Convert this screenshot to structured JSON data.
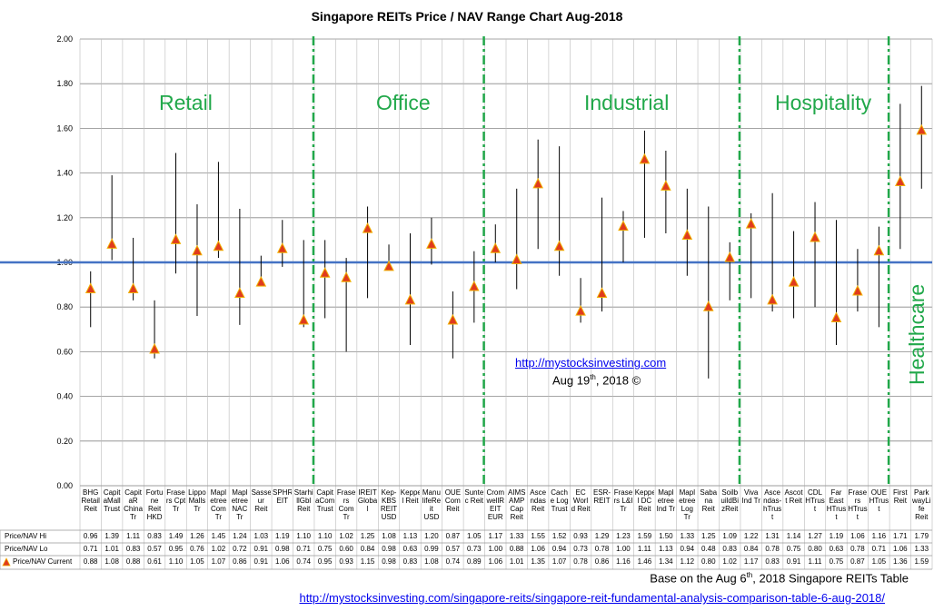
{
  "chart_data": {
    "type": "range",
    "title": "Singapore REITs Price / NAV Range Chart Aug-2018",
    "ylim": [
      0,
      2
    ],
    "yticks": [
      "0.00",
      "0.20",
      "0.40",
      "0.60",
      "0.80",
      "1.00",
      "1.20",
      "1.40",
      "1.60",
      "1.80",
      "2.00"
    ],
    "grid": true,
    "reference_line": 1.0,
    "sectors": [
      "Retail",
      "Office",
      "Industrial",
      "Hospitality",
      "Healthcare"
    ],
    "categories": [
      "BHG Retail Reit",
      "Capit aMall Trust",
      "Capit aR China Tr",
      "Fortu ne Reit HKD",
      "Frase rs Cpt Tr",
      "Lippo Malls Tr",
      "Mapl etree Com Tr",
      "Mapl etree NAC Tr",
      "Sasse ur Reit",
      "SPHR EIT",
      "Starhi llGbl Reit",
      "Capit aCom Trust",
      "Frase rs Com Tr",
      "IREIT Globa l",
      "Kep- KBS REIT USD",
      "Keppe l Reit",
      "Manu lifeRe it USD",
      "OUE Com Reit",
      "Sunte c Reit",
      "Crom wellR EIT EUR",
      "AIMS AMP Cap Reit",
      "Asce ndas Reit",
      "Cach e Log Trust",
      "EC Worl d Reit",
      "ESR- REIT",
      "Frase rs L&I Tr",
      "Keppe l DC Reit",
      "Mapl etree Ind Tr",
      "Mapl etree Log Tr",
      "Saba na Reit",
      "Soilb uildBi zReit",
      "Viva Ind Tr",
      "Asce ndas- hTrus t",
      "Ascot t Reit",
      "CDL HTrus t",
      "Far East HTrus t",
      "Frase rs HTrus t",
      "OUE HTrus t",
      "First Reit",
      "Park wayLi fe Reit"
    ],
    "series": [
      {
        "name": "Price/NAV Hi",
        "values": [
          0.96,
          1.39,
          1.11,
          0.83,
          1.49,
          1.26,
          1.45,
          1.24,
          1.03,
          1.19,
          1.1,
          1.1,
          1.02,
          1.25,
          1.08,
          1.13,
          1.2,
          0.87,
          1.05,
          1.17,
          1.33,
          1.55,
          1.52,
          0.93,
          1.29,
          1.23,
          1.59,
          1.5,
          1.33,
          1.25,
          1.09,
          1.22,
          1.31,
          1.14,
          1.27,
          1.19,
          1.06,
          1.16,
          1.71,
          1.79
        ]
      },
      {
        "name": "Price/NAV Lo",
        "values": [
          0.71,
          1.01,
          0.83,
          0.57,
          0.95,
          0.76,
          1.02,
          0.72,
          0.91,
          0.98,
          0.71,
          0.75,
          0.6,
          0.84,
          0.98,
          0.63,
          0.99,
          0.57,
          0.73,
          1.0,
          0.88,
          1.06,
          0.94,
          0.73,
          0.78,
          1.0,
          1.11,
          1.13,
          0.94,
          0.48,
          0.83,
          0.84,
          0.78,
          0.75,
          0.8,
          0.63,
          0.78,
          0.71,
          1.06,
          1.33
        ]
      },
      {
        "name": "Price/NAV Current",
        "values": [
          0.88,
          1.08,
          0.88,
          0.61,
          1.1,
          1.05,
          1.07,
          0.86,
          0.91,
          1.06,
          0.74,
          0.95,
          0.93,
          1.15,
          0.98,
          0.83,
          1.08,
          0.74,
          0.89,
          1.06,
          1.01,
          1.35,
          1.07,
          0.78,
          0.86,
          1.16,
          1.46,
          1.34,
          1.12,
          0.8,
          1.02,
          1.17,
          0.83,
          0.91,
          1.11,
          0.75,
          0.87,
          1.05,
          1.36,
          1.59
        ]
      }
    ],
    "colors": {
      "grid": "#888888",
      "reference": "#4472c4",
      "divider": "#21a84a",
      "marker": "#e03a1e",
      "marker_edge": "#f0b000",
      "range": "#000000"
    }
  },
  "sector_labels": {
    "retail": "Retail",
    "office": "Office",
    "industrial": "Industrial",
    "hospitality": "Hospitality",
    "healthcare": "Healthcare"
  },
  "watermark": {
    "link": "http://mystocksinvesting.com",
    "date_prefix": "Aug 19",
    "date_sup": "th",
    "date_suffix": ", 2018 ©"
  },
  "footer": {
    "note_prefix": "Base on the Aug 6",
    "note_sup": "th",
    "note_suffix": ", 2018 Singapore REITs Table",
    "link": "http://mystocksinvesting.com/singapore-reits/singapore-reit-fundamental-analysis-comparison-table-6-aug-2018/"
  }
}
